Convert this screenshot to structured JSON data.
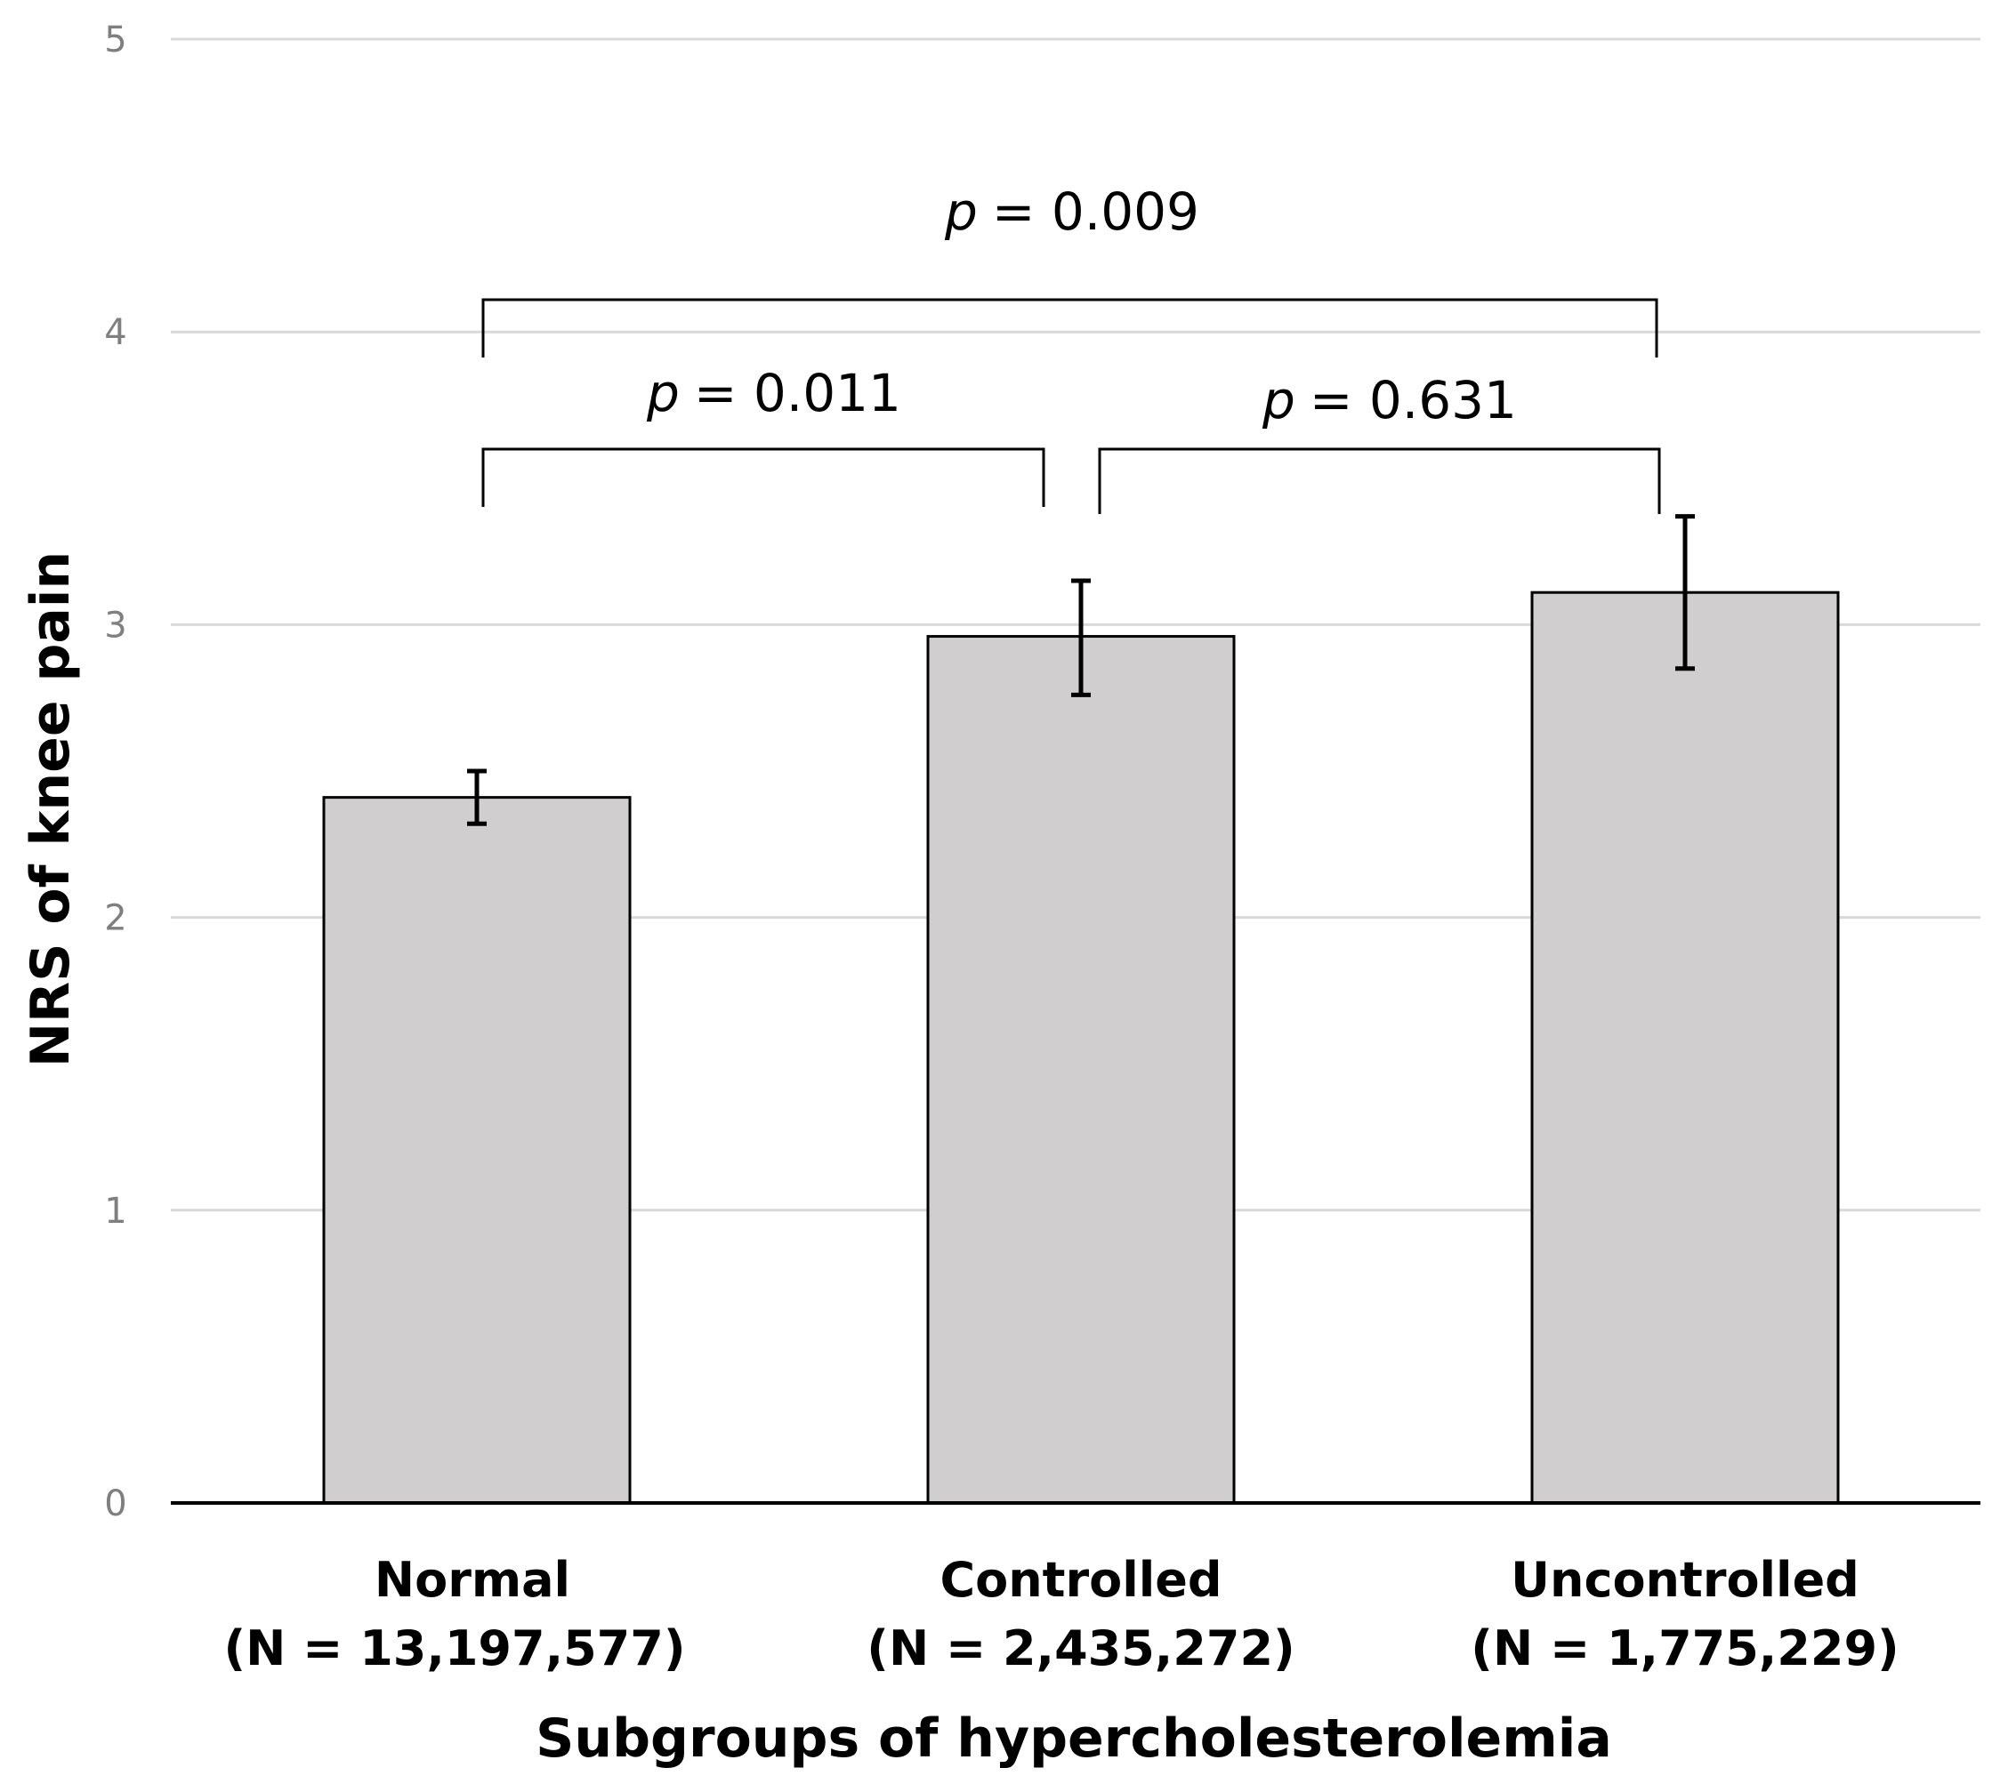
{
  "chart_data": {
    "type": "bar",
    "categories": [
      "Normal",
      "Controlled",
      "Uncontrolled"
    ],
    "category_sublabels": [
      "(N = 13,197,577)",
      "(N = 2,435,272)",
      "(N = 1,775,229)"
    ],
    "values": [
      2.41,
      2.96,
      3.11
    ],
    "error_low": [
      2.32,
      2.76,
      2.85
    ],
    "error_high": [
      2.5,
      3.15,
      3.37
    ],
    "xlabel": "Subgroups of hypercholesterolemia",
    "ylabel": "NRS of knee pain",
    "ylim": [
      0,
      5
    ],
    "yticks": [
      "0",
      "1",
      "2",
      "3",
      "4",
      "5"
    ],
    "grid": true,
    "bar_color": "#d0cece",
    "comparisons": [
      {
        "from": 0,
        "to": 1,
        "p_symbol": "p",
        "p_text": "= 0.011"
      },
      {
        "from": 1,
        "to": 2,
        "p_symbol": "p",
        "p_text": "= 0.631"
      },
      {
        "from": 0,
        "to": 2,
        "p_symbol": "p",
        "p_text": "= 0.009"
      }
    ]
  }
}
